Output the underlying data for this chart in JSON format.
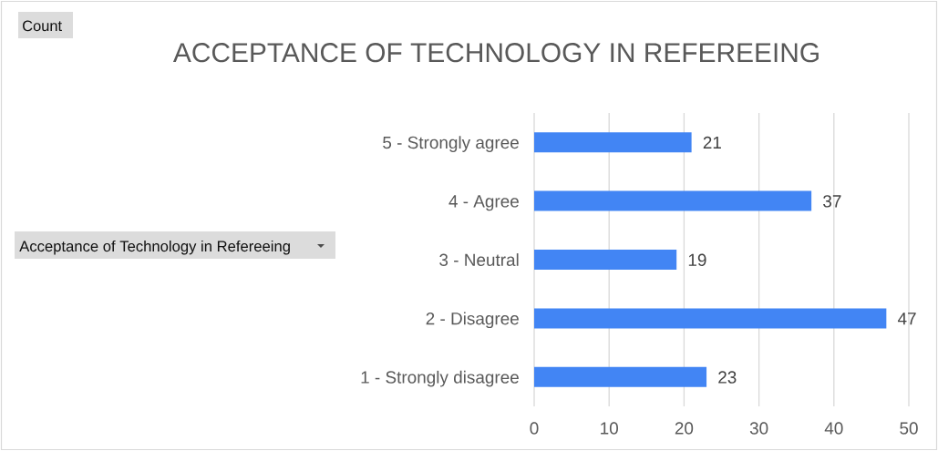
{
  "chart_data": {
    "type": "bar",
    "orientation": "horizontal",
    "title": "ACCEPTANCE OF TECHNOLOGY IN REFEREEING",
    "ylabel": "Acceptance of Technology in Refereeing",
    "annotations": [
      "Count"
    ],
    "categories": [
      "5 - Strongly agree",
      "4 - Agree",
      "3 - Neutral",
      "2 - Disagree",
      "1 - Strongly disagree"
    ],
    "values": [
      21,
      37,
      19,
      47,
      23
    ],
    "color": "#4285f4",
    "xlim": [
      0,
      50
    ],
    "xticks": [
      0,
      10,
      20,
      30,
      40,
      50
    ],
    "grid": "x",
    "data_labels": true
  }
}
